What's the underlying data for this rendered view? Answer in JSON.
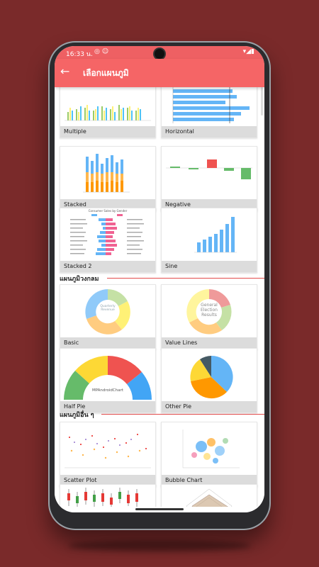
{
  "status": {
    "time": "16:33 น.",
    "left_icons": "◎ ☺",
    "right_icons": "▾◢▮"
  },
  "appbar": {
    "title": "เลือกแผนภูมิ",
    "back_icon": "arrow-back-icon"
  },
  "sections": {
    "pie": "แผนภูมิวงกลม",
    "other": "แผนภูมิอื่น ๆ"
  },
  "cards": {
    "multiple": "Multiple",
    "horizontal": "Horizontal",
    "stacked": "Stacked",
    "negative": "Negative",
    "stacked2": "Stacked 2",
    "sine": "Sine",
    "basic": "Basic",
    "value_lines": "Value Lines",
    "half_pie": "Half Pie",
    "other_pie": "Other Pie",
    "scatter": "Scatter Plot",
    "bubble": "Bubble Chart"
  },
  "thumb_text": {
    "basic_center": "Quarterly Revenue",
    "value_lines_center": "General Election Results",
    "half_pie_center": "MPAndroidChart",
    "stacked2_title": "Consumer Sales by Gender"
  },
  "colors": {
    "appbar": "#f56566",
    "background": "#7a2a2a",
    "section_line": "#e24b4b",
    "bar_blue": "#64b5f6",
    "bar_orange": "#ffb74d",
    "pink": "#f06292"
  }
}
